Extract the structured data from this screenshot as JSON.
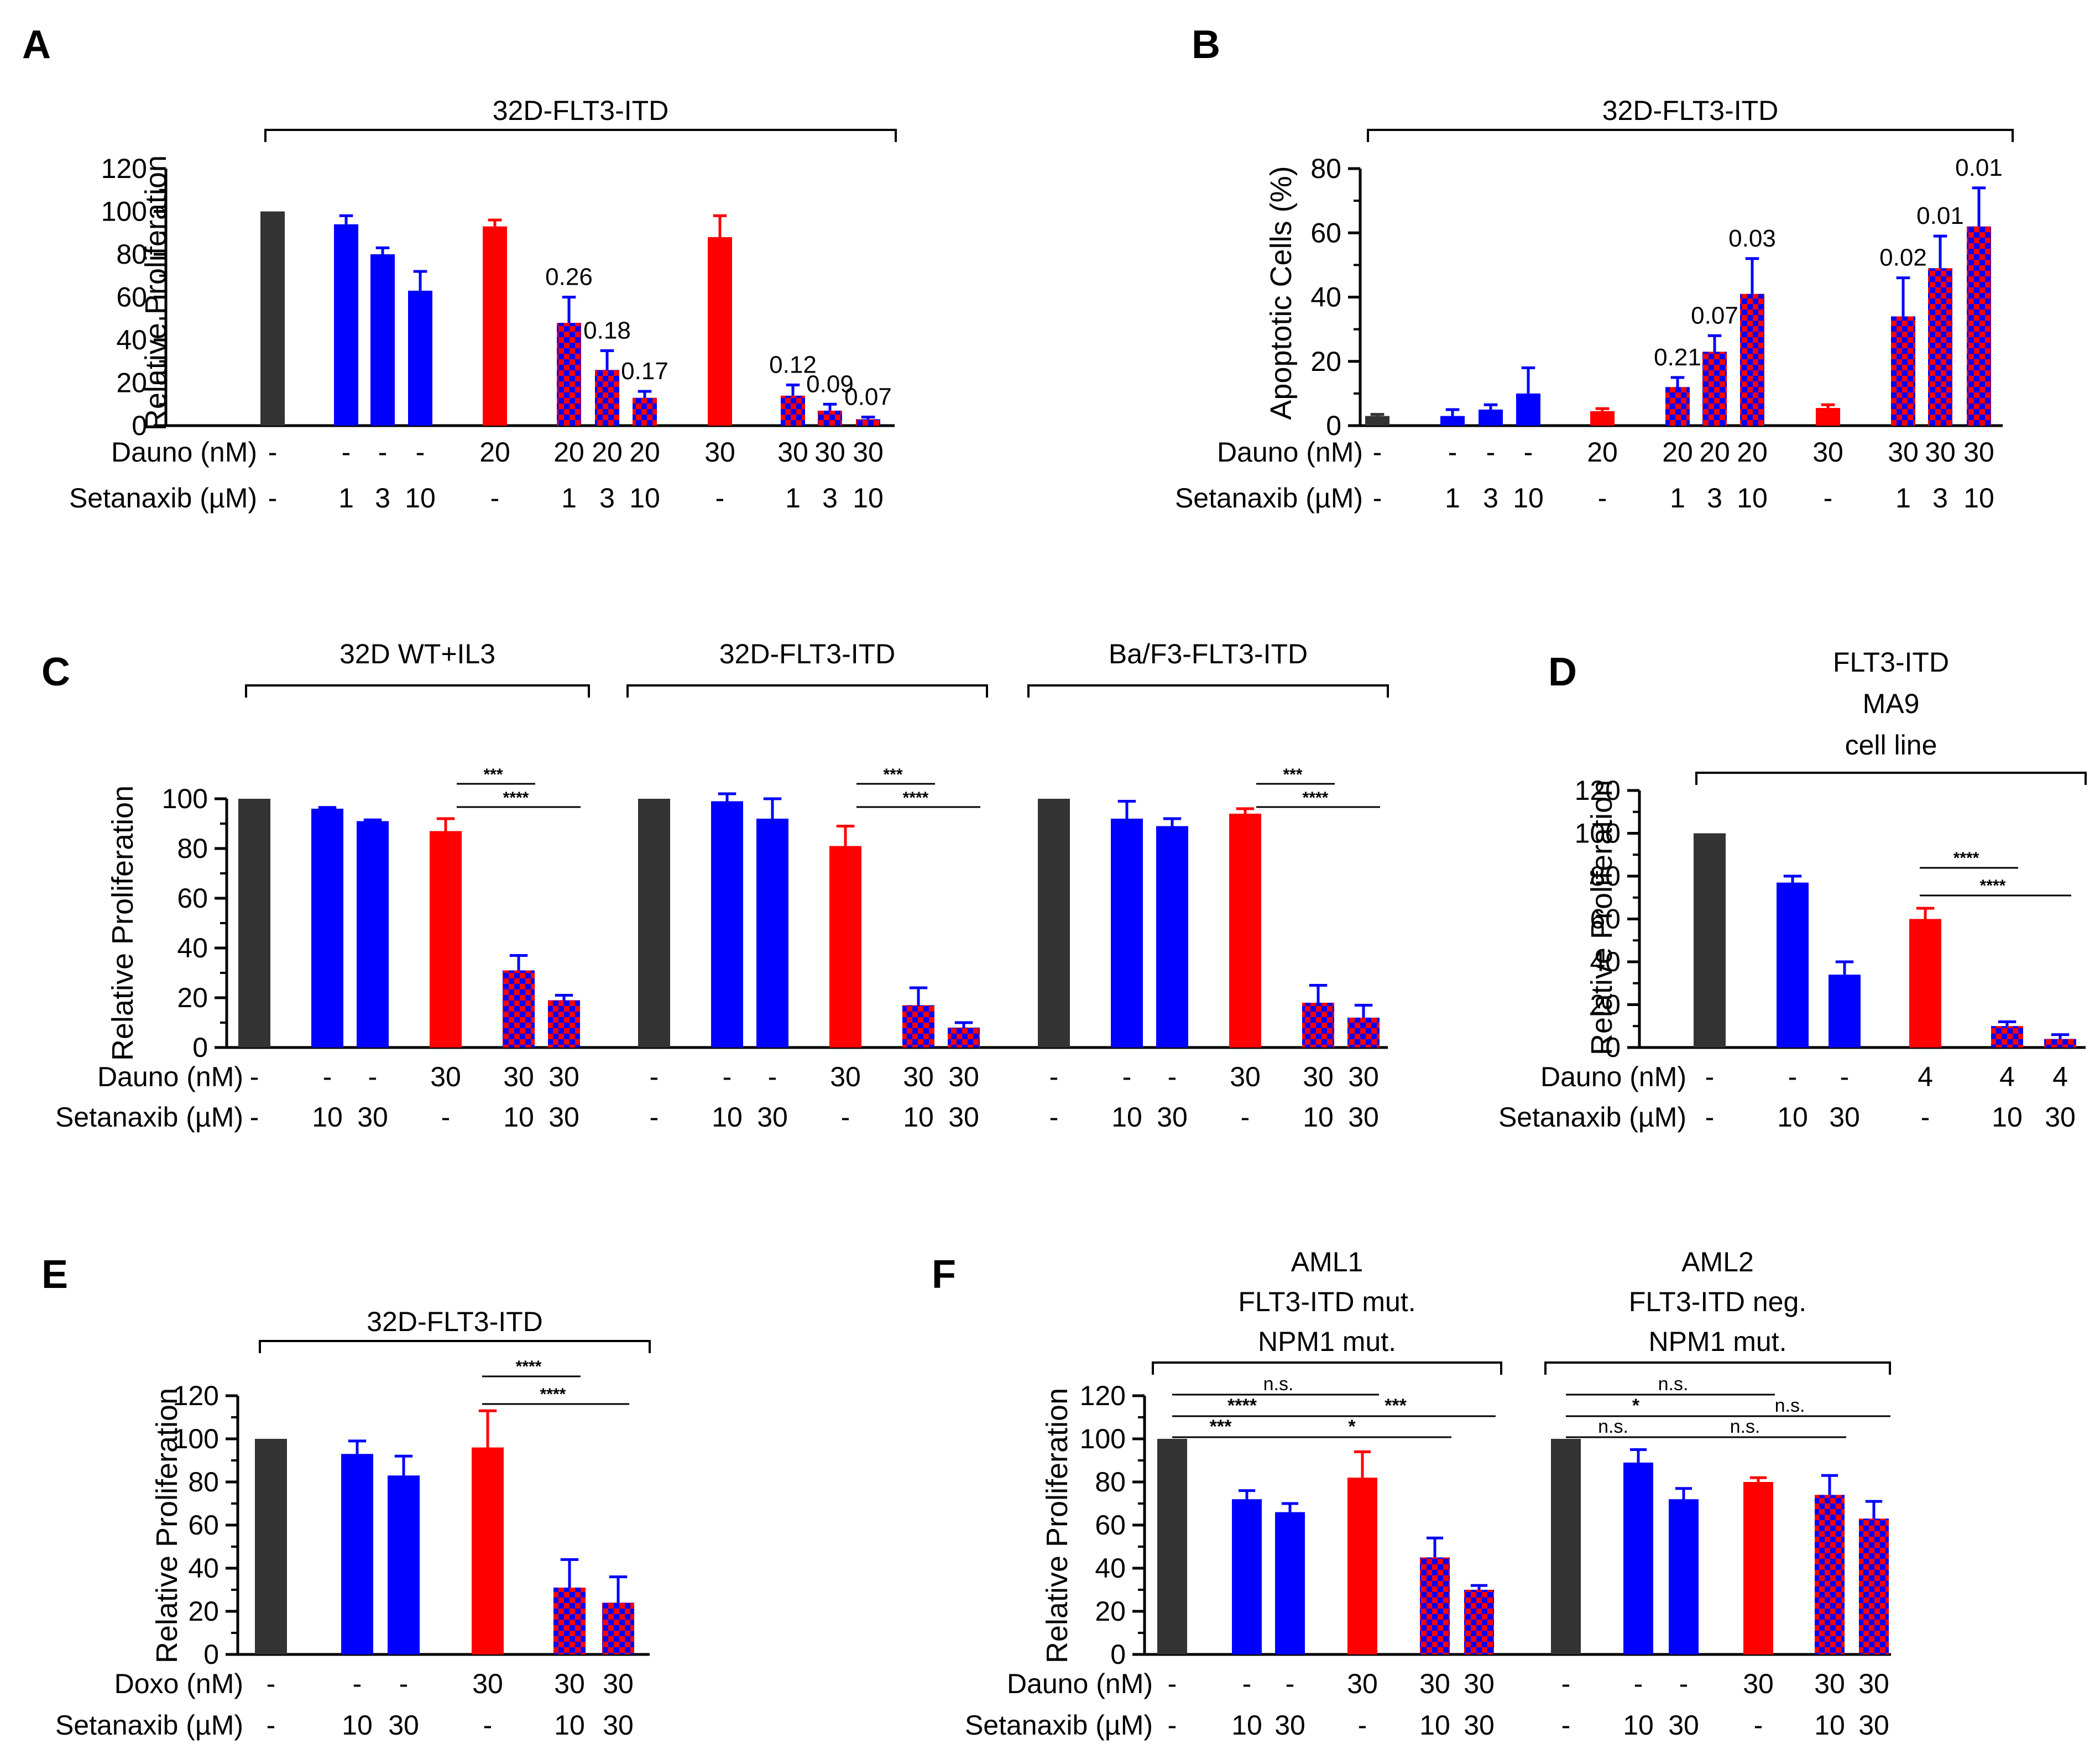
{
  "colors": {
    "control": "#333333",
    "seta": "#0000ff",
    "dauno": "#ff0000",
    "combo": "#0000ff",
    "combo_alt": "#ff0000"
  },
  "chart_data": [
    {
      "id": "A",
      "type": "bar",
      "panel_label": "A",
      "title": "32D-FLT3-ITD",
      "ylabel": "Relative Proliferation",
      "ylim": [
        0,
        120
      ],
      "yticks": [
        0,
        20,
        40,
        60,
        80,
        100,
        120
      ],
      "row_labels": [
        "Dauno (nM)",
        "Setanaxib (µM)"
      ],
      "bars": [
        {
          "kind": "control",
          "value": 100,
          "err": 0,
          "rows": [
            "-",
            "-"
          ]
        },
        {
          "kind": "seta",
          "value": 94,
          "err": 4,
          "rows": [
            "-",
            "1"
          ]
        },
        {
          "kind": "seta",
          "value": 80,
          "err": 3,
          "rows": [
            "-",
            "3"
          ]
        },
        {
          "kind": "seta",
          "value": 63,
          "err": 9,
          "rows": [
            "-",
            "10"
          ]
        },
        {
          "kind": "dauno",
          "value": 93,
          "err": 3,
          "rows": [
            "20",
            "-"
          ]
        },
        {
          "kind": "combo",
          "value": 48,
          "err": 12,
          "label": "0.26",
          "rows": [
            "20",
            "1"
          ]
        },
        {
          "kind": "combo",
          "value": 26,
          "err": 9,
          "label": "0.18",
          "rows": [
            "20",
            "3"
          ]
        },
        {
          "kind": "combo",
          "value": 13,
          "err": 3,
          "label": "0.17",
          "rows": [
            "20",
            "10"
          ]
        },
        {
          "kind": "dauno",
          "value": 88,
          "err": 10,
          "rows": [
            "30",
            "-"
          ]
        },
        {
          "kind": "combo",
          "value": 14,
          "err": 5,
          "label": "0.12",
          "rows": [
            "30",
            "1"
          ]
        },
        {
          "kind": "combo",
          "value": 7,
          "err": 3,
          "label": "0.09",
          "rows": [
            "30",
            "3"
          ]
        },
        {
          "kind": "combo",
          "value": 3,
          "err": 1,
          "label": "0.07",
          "rows": [
            "30",
            "10"
          ]
        }
      ]
    },
    {
      "id": "B",
      "type": "bar",
      "panel_label": "B",
      "title": "32D-FLT3-ITD",
      "ylabel": "Apoptotic Cells (%)",
      "ylim": [
        0,
        80
      ],
      "yticks": [
        0,
        20,
        40,
        60,
        80
      ],
      "row_labels": [
        "Dauno (nM)",
        "Setanaxib (µM)"
      ],
      "bars": [
        {
          "kind": "control",
          "value": 3,
          "err": 0.5,
          "rows": [
            "-",
            "-"
          ]
        },
        {
          "kind": "seta",
          "value": 3,
          "err": 2,
          "rows": [
            "-",
            "1"
          ]
        },
        {
          "kind": "seta",
          "value": 5,
          "err": 1.5,
          "rows": [
            "-",
            "3"
          ]
        },
        {
          "kind": "seta",
          "value": 10,
          "err": 8,
          "rows": [
            "-",
            "10"
          ]
        },
        {
          "kind": "dauno",
          "value": 4.5,
          "err": 0.8,
          "rows": [
            "20",
            "-"
          ]
        },
        {
          "kind": "combo",
          "value": 12,
          "err": 3,
          "label": "0.21",
          "rows": [
            "20",
            "1"
          ]
        },
        {
          "kind": "combo",
          "value": 23,
          "err": 5,
          "label": "0.07",
          "rows": [
            "20",
            "3"
          ]
        },
        {
          "kind": "combo",
          "value": 41,
          "err": 11,
          "label": "0.03",
          "rows": [
            "20",
            "10"
          ]
        },
        {
          "kind": "dauno",
          "value": 5.5,
          "err": 1,
          "rows": [
            "30",
            "-"
          ]
        },
        {
          "kind": "combo",
          "value": 34,
          "err": 12,
          "label": "0.02",
          "rows": [
            "30",
            "1"
          ]
        },
        {
          "kind": "combo",
          "value": 49,
          "err": 10,
          "label": "0.01",
          "rows": [
            "30",
            "3"
          ]
        },
        {
          "kind": "combo",
          "value": 62,
          "err": 12,
          "label": "0.01",
          "rows": [
            "30",
            "10"
          ]
        }
      ]
    },
    {
      "id": "C",
      "type": "bar",
      "panel_label": "C",
      "ylabel": "Relative Proliferation",
      "ylim": [
        0,
        100
      ],
      "yticks": [
        0,
        20,
        40,
        60,
        80,
        100
      ],
      "row_labels": [
        "Dauno (nM)",
        "Setanaxib (µM)"
      ],
      "groups": [
        {
          "title": "32D WT+IL3",
          "bars": [
            {
              "kind": "control",
              "value": 100,
              "err": 0,
              "rows": [
                "-",
                "-"
              ]
            },
            {
              "kind": "seta",
              "value": 96,
              "err": 0.5,
              "rows": [
                "-",
                "10"
              ]
            },
            {
              "kind": "seta",
              "value": 91,
              "err": 0.5,
              "rows": [
                "-",
                "30"
              ]
            },
            {
              "kind": "dauno",
              "value": 87,
              "err": 5,
              "rows": [
                "30",
                "-"
              ]
            },
            {
              "kind": "combo",
              "value": 31,
              "err": 6,
              "rows": [
                "30",
                "10"
              ]
            },
            {
              "kind": "combo",
              "value": 19,
              "err": 2,
              "rows": [
                "30",
                "30"
              ]
            }
          ],
          "sig": [
            {
              "from": 3,
              "to": 4,
              "label": "***"
            },
            {
              "from": 3,
              "to": 5,
              "label": "****"
            }
          ]
        },
        {
          "title": "32D-FLT3-ITD",
          "bars": [
            {
              "kind": "control",
              "value": 100,
              "err": 0,
              "rows": [
                "-",
                "-"
              ]
            },
            {
              "kind": "seta",
              "value": 99,
              "err": 3,
              "rows": [
                "-",
                "10"
              ]
            },
            {
              "kind": "seta",
              "value": 92,
              "err": 8,
              "rows": [
                "-",
                "30"
              ]
            },
            {
              "kind": "dauno",
              "value": 81,
              "err": 8,
              "rows": [
                "30",
                "-"
              ]
            },
            {
              "kind": "combo",
              "value": 17,
              "err": 7,
              "rows": [
                "30",
                "10"
              ]
            },
            {
              "kind": "combo",
              "value": 8,
              "err": 2,
              "rows": [
                "30",
                "30"
              ]
            }
          ],
          "sig": [
            {
              "from": 3,
              "to": 4,
              "label": "***"
            },
            {
              "from": 3,
              "to": 5,
              "label": "****"
            }
          ]
        },
        {
          "title": "Ba/F3-FLT3-ITD",
          "bars": [
            {
              "kind": "control",
              "value": 100,
              "err": 0,
              "rows": [
                "-",
                "-"
              ]
            },
            {
              "kind": "seta",
              "value": 92,
              "err": 7,
              "rows": [
                "-",
                "10"
              ]
            },
            {
              "kind": "seta",
              "value": 89,
              "err": 3,
              "rows": [
                "-",
                "30"
              ]
            },
            {
              "kind": "dauno",
              "value": 94,
              "err": 2,
              "rows": [
                "30",
                "-"
              ]
            },
            {
              "kind": "combo",
              "value": 18,
              "err": 7,
              "rows": [
                "30",
                "10"
              ]
            },
            {
              "kind": "combo",
              "value": 12,
              "err": 5,
              "rows": [
                "30",
                "30"
              ]
            }
          ],
          "sig": [
            {
              "from": 3,
              "to": 4,
              "label": "***"
            },
            {
              "from": 3,
              "to": 5,
              "label": "****"
            }
          ]
        }
      ]
    },
    {
      "id": "D",
      "type": "bar",
      "panel_label": "D",
      "title_lines": [
        "FLT3-ITD",
        "MA9",
        "cell line"
      ],
      "ylabel": "Relative Proliferation",
      "ylim": [
        0,
        120
      ],
      "yticks": [
        0,
        20,
        40,
        60,
        80,
        100,
        120
      ],
      "row_labels": [
        "Dauno (nM)",
        "Setanaxib (µM)"
      ],
      "bars": [
        {
          "kind": "control",
          "value": 100,
          "err": 0,
          "rows": [
            "-",
            "-"
          ]
        },
        {
          "kind": "seta",
          "value": 77,
          "err": 3,
          "rows": [
            "-",
            "10"
          ]
        },
        {
          "kind": "seta",
          "value": 34,
          "err": 6,
          "rows": [
            "-",
            "30"
          ]
        },
        {
          "kind": "dauno",
          "value": 60,
          "err": 5,
          "rows": [
            "4",
            "-"
          ]
        },
        {
          "kind": "combo",
          "value": 10,
          "err": 2,
          "rows": [
            "4",
            "10"
          ]
        },
        {
          "kind": "combo",
          "value": 4,
          "err": 2,
          "rows": [
            "4",
            "30"
          ]
        }
      ],
      "sig": [
        {
          "from": 3,
          "to": 4,
          "label": "****"
        },
        {
          "from": 3,
          "to": 5,
          "label": "****"
        }
      ]
    },
    {
      "id": "E",
      "type": "bar",
      "panel_label": "E",
      "title": "32D-FLT3-ITD",
      "ylabel": "Relative Proliferation",
      "ylim": [
        0,
        120
      ],
      "yticks": [
        0,
        20,
        40,
        60,
        80,
        100,
        120
      ],
      "row_labels": [
        "Doxo (nM)",
        "Setanaxib (µM)"
      ],
      "bars": [
        {
          "kind": "control",
          "value": 100,
          "err": 0,
          "rows": [
            "-",
            "-"
          ]
        },
        {
          "kind": "seta",
          "value": 93,
          "err": 6,
          "rows": [
            "-",
            "10"
          ]
        },
        {
          "kind": "seta",
          "value": 83,
          "err": 9,
          "rows": [
            "-",
            "30"
          ]
        },
        {
          "kind": "dauno",
          "value": 96,
          "err": 17,
          "rows": [
            "30",
            "-"
          ]
        },
        {
          "kind": "combo",
          "value": 31,
          "err": 13,
          "rows": [
            "30",
            "10"
          ]
        },
        {
          "kind": "combo",
          "value": 24,
          "err": 12,
          "rows": [
            "30",
            "30"
          ]
        }
      ],
      "sig": [
        {
          "from": 3,
          "to": 4,
          "label": "****"
        },
        {
          "from": 3,
          "to": 5,
          "label": "****"
        }
      ]
    },
    {
      "id": "F",
      "type": "bar",
      "panel_label": "F",
      "ylabel": "Relative Proliferation",
      "ylim": [
        0,
        120
      ],
      "yticks": [
        0,
        20,
        40,
        60,
        80,
        100,
        120
      ],
      "row_labels": [
        "Dauno (nM)",
        "Setanaxib (µM)"
      ],
      "groups": [
        {
          "title_lines": [
            "AML1",
            "FLT3-ITD mut.",
            "NPM1 mut."
          ],
          "bars": [
            {
              "kind": "control",
              "value": 100,
              "err": 0,
              "rows": [
                "-",
                "-"
              ]
            },
            {
              "kind": "seta",
              "value": 72,
              "err": 4,
              "rows": [
                "-",
                "10"
              ]
            },
            {
              "kind": "seta",
              "value": 66,
              "err": 4,
              "rows": [
                "-",
                "30"
              ]
            },
            {
              "kind": "dauno",
              "value": 82,
              "err": 12,
              "rows": [
                "30",
                "-"
              ]
            },
            {
              "kind": "combo",
              "value": 45,
              "err": 9,
              "rows": [
                "30",
                "10"
              ]
            },
            {
              "kind": "combo",
              "value": 30,
              "err": 2,
              "rows": [
                "30",
                "30"
              ]
            }
          ],
          "sig": [
            {
              "from": 0,
              "to": 3,
              "label": "n.s."
            },
            {
              "from": 0,
              "to": 2,
              "label": "****"
            },
            {
              "from": 2,
              "to": 5,
              "label": "***"
            },
            {
              "from": 0,
              "to": 1,
              "label": "***"
            },
            {
              "from": 1,
              "to": 4,
              "label": "*"
            }
          ]
        },
        {
          "title_lines": [
            "AML2",
            "FLT3-ITD neg.",
            "NPM1 mut."
          ],
          "bars": [
            {
              "kind": "control",
              "value": 100,
              "err": 0,
              "rows": [
                "-",
                "-"
              ]
            },
            {
              "kind": "seta",
              "value": 89,
              "err": 6,
              "rows": [
                "-",
                "10"
              ]
            },
            {
              "kind": "seta",
              "value": 72,
              "err": 5,
              "rows": [
                "-",
                "30"
              ]
            },
            {
              "kind": "dauno",
              "value": 80,
              "err": 2,
              "rows": [
                "30",
                "-"
              ]
            },
            {
              "kind": "combo",
              "value": 74,
              "err": 9,
              "rows": [
                "30",
                "10"
              ]
            },
            {
              "kind": "combo",
              "value": 63,
              "err": 8,
              "rows": [
                "30",
                "30"
              ]
            }
          ],
          "sig": [
            {
              "from": 0,
              "to": 3,
              "label": "n.s."
            },
            {
              "from": 0,
              "to": 2,
              "label": "*"
            },
            {
              "from": 2,
              "to": 5,
              "label": "n.s."
            },
            {
              "from": 0,
              "to": 1,
              "label": "n.s."
            },
            {
              "from": 1,
              "to": 4,
              "label": "n.s."
            }
          ]
        }
      ]
    }
  ]
}
